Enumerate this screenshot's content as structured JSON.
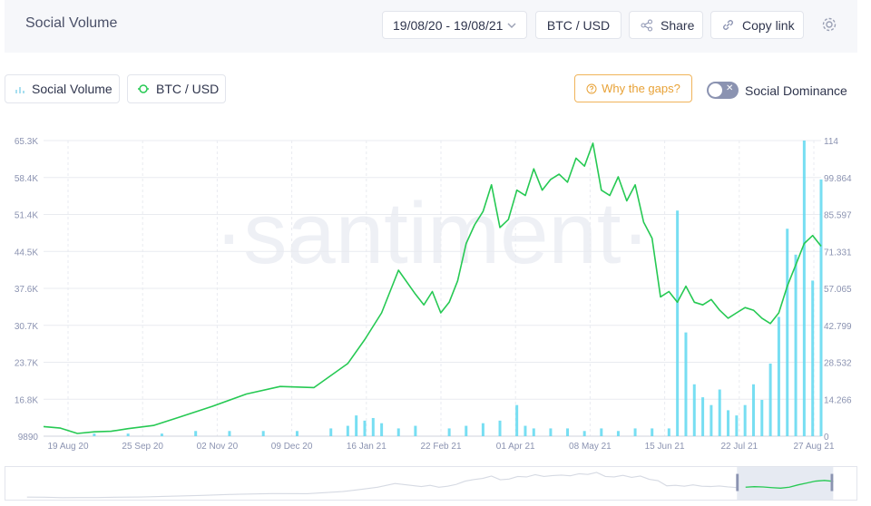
{
  "header": {
    "title": "Social Volume",
    "date_range": "19/08/20 - 19/08/21",
    "pair": "BTC / USD",
    "share_label": "Share",
    "copy_label": "Copy link"
  },
  "toolbar": {
    "metric_social_volume": "Social Volume",
    "metric_btc_usd": "BTC / USD",
    "gaps_label": "Why the gaps?",
    "dominance_label": "Social Dominance",
    "dominance_on": false
  },
  "watermark": "·santiment·",
  "colors": {
    "price_line": "#26c953",
    "volume_bars": "#5fd8f0",
    "accent_orange": "#e8a237",
    "grid": "#e9ebf0"
  },
  "chart_data": {
    "type": "line",
    "x_labels": [
      "19 Aug 20",
      "25 Sep 20",
      "02 Nov 20",
      "09 Dec 20",
      "16 Jan 21",
      "22 Feb 21",
      "01 Apr 21",
      "08 May 21",
      "15 Jun 21",
      "22 Jul 21",
      "27 Aug 21"
    ],
    "y_left_ticks": [
      "65.3K",
      "58.4K",
      "51.4K",
      "44.5K",
      "37.6K",
      "30.7K",
      "23.7K",
      "16.8K",
      "9890"
    ],
    "y_right_ticks": [
      "114",
      "99.864",
      "85.597",
      "71.331",
      "57.065",
      "42.799",
      "28.532",
      "14.266",
      "0"
    ],
    "y_left_range": [
      9890,
      65300
    ],
    "y_right_range": [
      0,
      114
    ],
    "series": [
      {
        "name": "BTC / USD",
        "axis": "left",
        "x_index": [
          0,
          2,
          4,
          6,
          8,
          10,
          13,
          16,
          20,
          24,
          28,
          32,
          36,
          38,
          40,
          42,
          44,
          45,
          46,
          47,
          48,
          49,
          50,
          51,
          52,
          53,
          54,
          55,
          56,
          57,
          58,
          59,
          60,
          61,
          62,
          63,
          64,
          65,
          66,
          67,
          68,
          69,
          70,
          71,
          72,
          73,
          74,
          75,
          76,
          77,
          78,
          79,
          80,
          81,
          82,
          83,
          84,
          85,
          86,
          87,
          88,
          89,
          90,
          91,
          92
        ],
        "values": [
          11700,
          11400,
          10400,
          10700,
          10800,
          11300,
          11900,
          13400,
          15500,
          17800,
          19200,
          19000,
          23500,
          28000,
          33000,
          41000,
          36500,
          34500,
          37000,
          33000,
          35000,
          39000,
          46000,
          49500,
          52000,
          57000,
          49000,
          50500,
          56000,
          55000,
          60000,
          56000,
          58000,
          59000,
          57500,
          62000,
          60500,
          64800,
          56000,
          55000,
          58500,
          54000,
          57000,
          50000,
          47000,
          36000,
          37000,
          35000,
          38000,
          35000,
          34500,
          35500,
          33500,
          32000,
          33000,
          34000,
          33500,
          32000,
          31000,
          33000,
          38000,
          42000,
          46000,
          47500,
          45500
        ]
      },
      {
        "name": "Social Volume",
        "axis": "right",
        "x_index": [
          6,
          10,
          14,
          18,
          22,
          26,
          30,
          34,
          36,
          37,
          38,
          39,
          40,
          42,
          44,
          48,
          50,
          52,
          54,
          56,
          57,
          58,
          60,
          62,
          64,
          66,
          68,
          70,
          72,
          74,
          75,
          76,
          77,
          78,
          79,
          80,
          81,
          82,
          83,
          84,
          85,
          86,
          87,
          88,
          89,
          90,
          91,
          92
        ],
        "values": [
          1,
          1,
          1,
          2,
          2,
          2,
          2,
          3,
          4,
          8,
          6,
          7,
          5,
          3,
          4,
          3,
          4,
          5,
          6,
          12,
          4,
          3,
          3,
          3,
          2,
          3,
          2,
          3,
          3,
          3,
          87,
          40,
          20,
          15,
          12,
          18,
          10,
          8,
          12,
          20,
          14,
          28,
          46,
          80,
          70,
          114,
          60,
          99
        ]
      }
    ],
    "grid": true
  }
}
